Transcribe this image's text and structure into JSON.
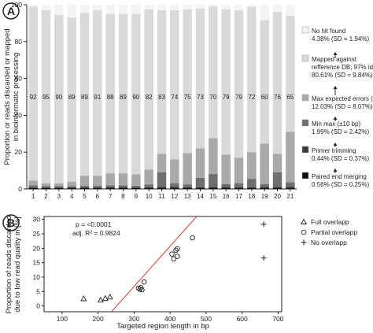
{
  "figure": {
    "panel_a_letter": "A",
    "panel_b_letter": "B"
  },
  "chart_data": [
    {
      "type": "bar",
      "stacked": true,
      "categories": [
        "1",
        "2",
        "3",
        "4",
        "5",
        "6",
        "7",
        "8",
        "9",
        "10",
        "11",
        "12",
        "13",
        "14",
        "15",
        "16",
        "17",
        "18",
        "19",
        "20",
        "21"
      ],
      "ylabel": "Proportion or reads discarded or mapped in bioinformatic processing",
      "ylim": [
        0,
        100
      ],
      "yticks": [
        0,
        20,
        40,
        60,
        80,
        100
      ],
      "grid": false,
      "legend_position": "right",
      "bar_labels": [
        92,
        95,
        90,
        89,
        89,
        91,
        88,
        89,
        90,
        82,
        83,
        74,
        75,
        73,
        70,
        79,
        79,
        72,
        60,
        76,
        65
      ],
      "series": [
        {
          "name": "Paired end merging",
          "color": "#111111",
          "values": [
            0.5,
            0.5,
            0.5,
            0.5,
            0.5,
            0.5,
            0.6,
            0.6,
            0.5,
            0.6,
            0.6,
            0.6,
            0.6,
            0.6,
            0.6,
            0.6,
            0.6,
            0.6,
            0.6,
            0.6,
            0.6
          ]
        },
        {
          "name": "Primer trimming",
          "color": "#3a3a3a",
          "values": [
            0.4,
            0.4,
            0.4,
            0.4,
            0.4,
            0.4,
            0.4,
            0.4,
            0.4,
            0.4,
            0.5,
            0.5,
            0.4,
            0.4,
            0.5,
            0.5,
            0.4,
            0.4,
            0.5,
            0.5,
            0.5
          ]
        },
        {
          "name": "Min max (±10 bp)",
          "color": "#6f6f6f",
          "values": [
            1.1,
            0.6,
            0.6,
            0.6,
            0.8,
            0.8,
            1.0,
            1.0,
            0.9,
            1.5,
            8,
            2,
            1.5,
            5,
            7,
            1.5,
            2,
            4.5,
            1.5,
            8,
            2.5
          ]
        },
        {
          "name": "Max expected errors (=1)",
          "color": "#a9a9a9",
          "values": [
            2.5,
            1.5,
            1.5,
            2.5,
            5.5,
            5.5,
            6.5,
            6.5,
            6.2,
            8,
            10,
            13,
            17,
            16,
            19.5,
            16,
            14,
            14.5,
            22,
            10,
            27.5
          ]
        },
        {
          "name": "Mapped against refference DB; 97% id",
          "color": "#d9d9d9",
          "values": [
            94.5,
            94,
            91.5,
            89,
            88.3,
            89.8,
            86.5,
            86.5,
            87,
            87,
            78,
            81,
            78,
            76,
            71.5,
            79,
            80,
            79,
            67,
            77,
            63
          ]
        },
        {
          "name": "No hit found",
          "color": "#f4f4f4",
          "values": [
            1,
            3,
            5.5,
            7,
            4.5,
            3,
            5,
            5,
            5,
            2.5,
            3,
            3,
            2.5,
            2,
            1,
            2.4,
            3,
            1,
            8.4,
            3.9,
            5.9
          ]
        }
      ],
      "legend": [
        {
          "name": "No hit found",
          "stat": "4.38% (SD = 1.94%)"
        },
        {
          "name": "Mapped against refference DB; 97% id",
          "stat": "80.61% (SD = 9.84%)"
        },
        {
          "name": "Max expected errors (=1)",
          "stat": "12.03% (SD = 8.07%)"
        },
        {
          "name": "Min max (±10 bp)",
          "stat": "1.99% (SD = 2.42%)"
        },
        {
          "name": "Primer trimming",
          "stat": "0.44% (SD = 0.37%)"
        },
        {
          "name": "Paired end merging",
          "stat": "0.56% (SD = 0.25%)"
        }
      ]
    },
    {
      "type": "scatter",
      "xlabel": "Targeted region length in bp",
      "ylabel": "Proportion of reads discarded due to low read quality in [%]",
      "xlim": [
        50,
        710
      ],
      "ylim": [
        -2,
        31
      ],
      "xticks": [
        100,
        200,
        300,
        400,
        500,
        600,
        700
      ],
      "yticks": [
        0,
        5,
        10,
        15,
        20,
        25,
        30
      ],
      "grid": false,
      "legend_position": "right",
      "annotations": [
        "p = <0.0001",
        "adj. R² = 0.9824"
      ],
      "fit_line": {
        "color": "#e8332a",
        "slope": 0.1395,
        "intercept": -35.1
      },
      "series": [
        {
          "name": "Full overlapp",
          "marker": "triangle",
          "x": [
            160,
            207,
            220,
            233
          ],
          "y": [
            2.5,
            2.0,
            2.6,
            3.1
          ]
        },
        {
          "name": "Partial overlapp",
          "marker": "circle",
          "x": [
            312,
            316,
            319,
            322,
            328,
            405,
            410,
            416,
            420,
            420,
            462
          ],
          "y": [
            6.2,
            5.8,
            6.4,
            5.6,
            8.3,
            18,
            16.3,
            19.3,
            19.8,
            17.2,
            23.6
          ]
        },
        {
          "name": "No overlapp",
          "marker": "plus",
          "x": [
            660,
            660
          ],
          "y": [
            28.3,
            16.6
          ]
        }
      ]
    }
  ]
}
